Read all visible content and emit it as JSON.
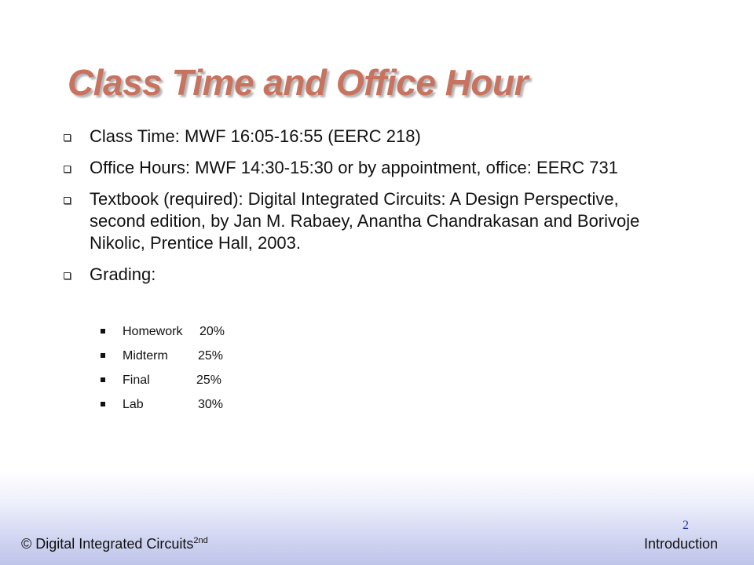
{
  "slide": {
    "title": "Class Time and Office Hour",
    "bullets": [
      {
        "text": "Class Time: MWF 16:05-16:55 (EERC 218)"
      },
      {
        "text": "Office Hours: MWF 14:30-15:30 or by appointment, office: EERC 731"
      },
      {
        "text": "Textbook (required): Digital Integrated Circuits: A Design Perspective, second edition, by Jan M. Rabaey, Anantha Chandrakasan and Borivoje Nikolic, Prentice Hall, 2003."
      },
      {
        "text": "Grading:"
      }
    ],
    "grading": [
      {
        "label": "Homework",
        "percent": "20%"
      },
      {
        "label": "Midterm",
        "percent": "25%"
      },
      {
        "label": "Final",
        "percent": "25%"
      },
      {
        "label": "Lab",
        "percent": "30%"
      }
    ]
  },
  "footer": {
    "left_text": "© Digital Integrated Circuits",
    "left_superscript": "2nd",
    "right_text": "Introduction",
    "page_number": "2"
  },
  "colors": {
    "title": "#c8735f",
    "page_number": "#2233aa",
    "footer_gradient": "#bfc4ea"
  }
}
